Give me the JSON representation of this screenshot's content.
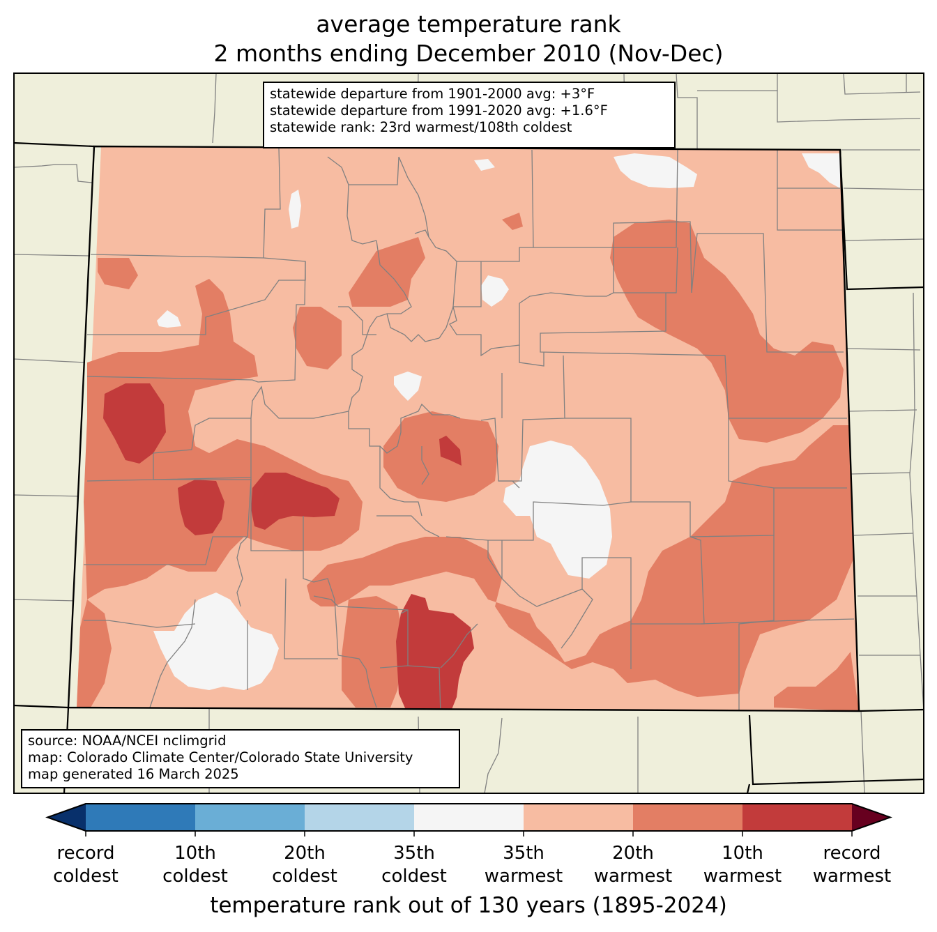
{
  "title": {
    "line1": "average temperature rank",
    "line2": "2 months ending December 2010 (Nov-Dec)"
  },
  "stats_box": {
    "line1": "statewide departure from 1901-2000 avg: +3°F",
    "line2": "statewide departure from 1991-2020 avg: +1.6°F",
    "line3": "statewide rank: 23rd warmest/108th coldest"
  },
  "source_box": {
    "line1": "source: NOAA/NCEI nclimgrid",
    "line2": "map: Colorado Climate Center/Colorado State University",
    "line3": "map generated 16 March 2025"
  },
  "colorbar": {
    "title": "temperature rank out of 130 years (1895-2024)",
    "colors": [
      "#08306b",
      "#2f7ab8",
      "#6aaed6",
      "#b4d5e8",
      "#f5f5f5",
      "#f7bca2",
      "#e37e64",
      "#c23b3b",
      "#67001f"
    ],
    "ticks": [
      {
        "l1": "record",
        "l2": "coldest"
      },
      {
        "l1": "10th",
        "l2": "coldest"
      },
      {
        "l1": "20th",
        "l2": "coldest"
      },
      {
        "l1": "35th",
        "l2": "coldest"
      },
      {
        "l1": "35th",
        "l2": "warmest"
      },
      {
        "l1": "20th",
        "l2": "warmest"
      },
      {
        "l1": "10th",
        "l2": "warmest"
      },
      {
        "l1": "record",
        "l2": "warmest"
      }
    ]
  },
  "map_colors": {
    "background_land": "#efefdb",
    "state_fill_base": "#f7bca2",
    "warm_20th": "#e37e64",
    "warm_10th": "#c23b3b",
    "near_normal": "#f5f5f5",
    "county_lines": "#808080",
    "state_lines": "#000000"
  }
}
